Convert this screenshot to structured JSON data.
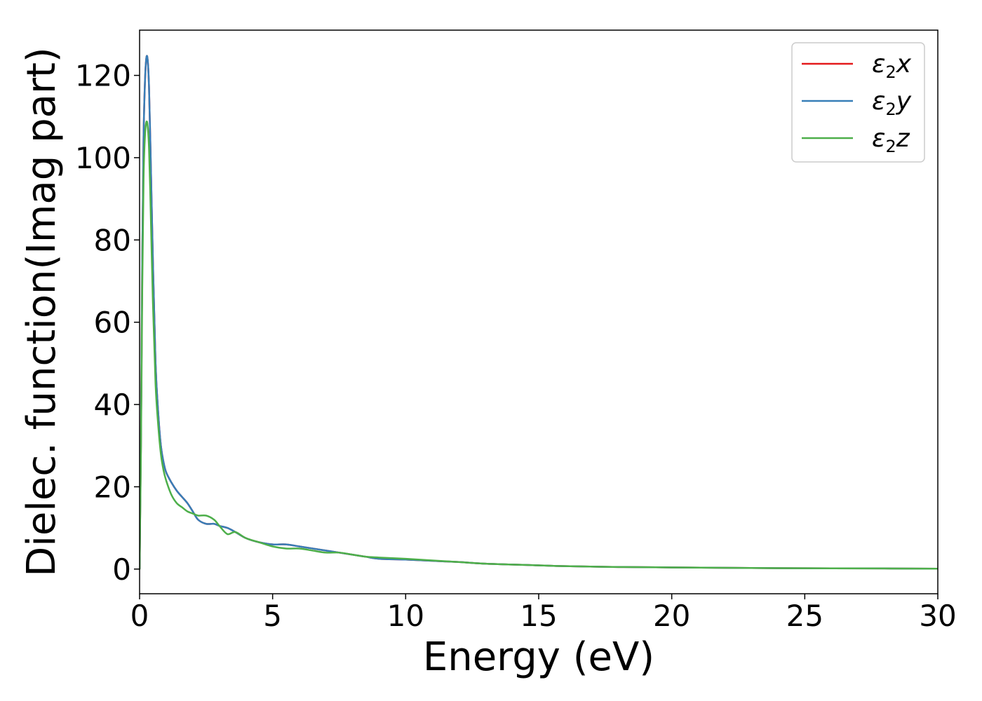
{
  "chart_data": {
    "type": "line",
    "title": "",
    "xlabel": "Energy (eV)",
    "ylabel": "Dielec. function(Imag part)",
    "xlim": [
      0,
      30
    ],
    "ylim": [
      -6,
      131
    ],
    "xticks": [
      0,
      5,
      10,
      15,
      20,
      25,
      30
    ],
    "yticks": [
      0,
      20,
      40,
      60,
      80,
      100,
      120
    ],
    "grid": false,
    "legend_position": "top-right",
    "series": [
      {
        "name": "ε2x",
        "legend_main": "ε",
        "legend_sub": "2",
        "legend_suffix": "x",
        "color": "#e41a1c",
        "x": [
          0,
          0.05,
          0.1,
          0.15,
          0.2,
          0.25,
          0.3,
          0.35,
          0.4,
          0.5,
          0.6,
          0.7,
          0.8,
          0.9,
          1.0,
          1.2,
          1.4,
          1.6,
          1.8,
          2.0,
          2.2,
          2.5,
          2.8,
          3.0,
          3.3,
          3.6,
          4.0,
          4.5,
          5.0,
          5.5,
          6.0,
          6.5,
          7.0,
          7.5,
          8.0,
          8.5,
          9.0,
          10,
          11,
          12,
          13,
          14,
          15,
          16,
          18,
          20,
          22,
          25,
          28,
          30
        ],
        "y": [
          0,
          30,
          75,
          105,
          118,
          124,
          124,
          118,
          105,
          75,
          50,
          38,
          30,
          26,
          23.5,
          21,
          19,
          17.5,
          16,
          14,
          12,
          11,
          11,
          10.5,
          10,
          9,
          7.5,
          6.5,
          6,
          6,
          5.5,
          5,
          4.5,
          4,
          3.5,
          3,
          2.5,
          2.3,
          2.0,
          1.7,
          1.3,
          1.1,
          0.9,
          0.7,
          0.5,
          0.4,
          0.3,
          0.2,
          0.15,
          0.1
        ]
      },
      {
        "name": "ε2y",
        "legend_main": "ε",
        "legend_sub": "2",
        "legend_suffix": "y",
        "color": "#377eb8",
        "x": [
          0,
          0.05,
          0.1,
          0.15,
          0.2,
          0.25,
          0.3,
          0.35,
          0.4,
          0.5,
          0.6,
          0.7,
          0.8,
          0.9,
          1.0,
          1.2,
          1.4,
          1.6,
          1.8,
          2.0,
          2.2,
          2.5,
          2.8,
          3.0,
          3.3,
          3.6,
          4.0,
          4.5,
          5.0,
          5.5,
          6.0,
          6.5,
          7.0,
          7.5,
          8.0,
          8.5,
          9.0,
          10,
          11,
          12,
          13,
          14,
          15,
          16,
          18,
          20,
          22,
          25,
          28,
          30
        ],
        "y": [
          0,
          30,
          75,
          105,
          118,
          124,
          124,
          118,
          105,
          75,
          50,
          38,
          30,
          26,
          23.5,
          21,
          19,
          17.5,
          16,
          14,
          12,
          11,
          11,
          10.5,
          10,
          9,
          7.5,
          6.5,
          6,
          6,
          5.5,
          5,
          4.5,
          4,
          3.5,
          3,
          2.5,
          2.3,
          2.0,
          1.7,
          1.3,
          1.1,
          0.9,
          0.7,
          0.5,
          0.4,
          0.3,
          0.2,
          0.15,
          0.1
        ]
      },
      {
        "name": "ε2z",
        "legend_main": "ε",
        "legend_sub": "2",
        "legend_suffix": "z",
        "color": "#4daf4a",
        "x": [
          0,
          0.05,
          0.1,
          0.15,
          0.2,
          0.25,
          0.3,
          0.35,
          0.4,
          0.5,
          0.6,
          0.7,
          0.8,
          0.9,
          1.0,
          1.2,
          1.4,
          1.6,
          1.8,
          2.0,
          2.2,
          2.5,
          2.8,
          3.0,
          3.3,
          3.6,
          4.0,
          4.5,
          5.0,
          5.5,
          6.0,
          6.5,
          7.0,
          7.5,
          8.0,
          8.5,
          9.0,
          10,
          11,
          12,
          13,
          14,
          15,
          16,
          18,
          20,
          22,
          25,
          28,
          30
        ],
        "y": [
          0,
          28,
          68,
          95,
          105,
          108.5,
          108,
          103,
          92,
          65,
          45,
          35,
          28,
          24,
          21.5,
          18,
          16,
          15,
          14,
          13.5,
          13,
          13,
          12,
          10.5,
          8.5,
          9,
          7.5,
          6.5,
          5.5,
          5,
          5,
          4.5,
          4,
          4,
          3.5,
          3,
          2.8,
          2.5,
          2.1,
          1.7,
          1.3,
          1.1,
          0.9,
          0.7,
          0.5,
          0.4,
          0.3,
          0.2,
          0.15,
          0.1
        ]
      }
    ]
  }
}
